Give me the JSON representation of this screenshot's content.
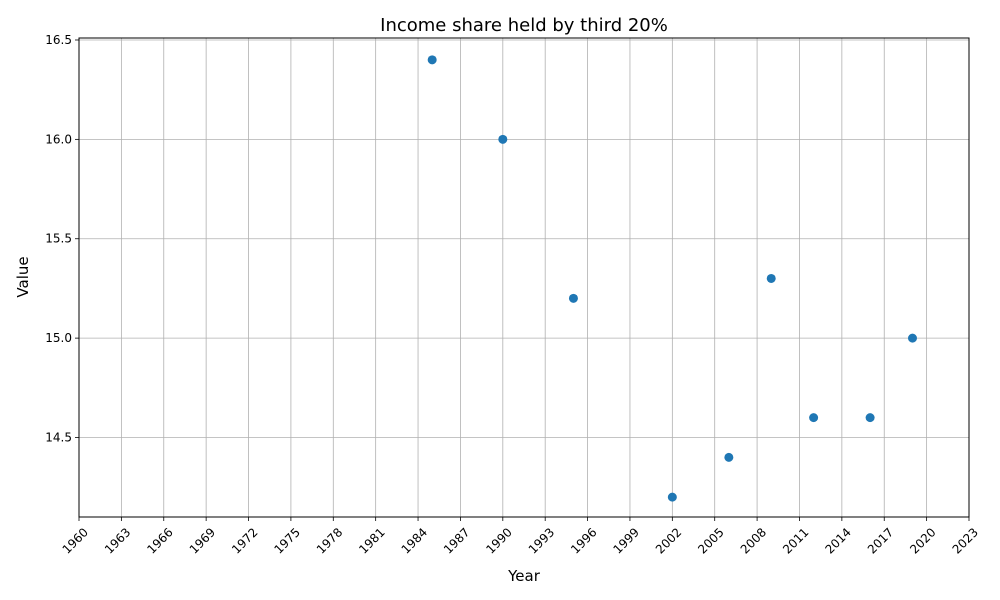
{
  "chart_data": {
    "type": "scatter",
    "title": "Income share held by third 20%",
    "xlabel": "Year",
    "ylabel": "Value",
    "xlim": [
      1960,
      2023
    ],
    "ylim": [
      14.1,
      16.51
    ],
    "x_ticks": [
      1960,
      1963,
      1966,
      1969,
      1972,
      1975,
      1978,
      1981,
      1984,
      1987,
      1990,
      1993,
      1996,
      1999,
      2002,
      2005,
      2008,
      2011,
      2014,
      2017,
      2020,
      2023
    ],
    "y_ticks": [
      14.5,
      15.0,
      15.5,
      16.0,
      16.5
    ],
    "y_tick_labels": [
      "14.5",
      "15.0",
      "15.5",
      "16.0",
      "16.5"
    ],
    "grid": true,
    "marker_color": "#1f77b4",
    "series": [
      {
        "x": [
          1985,
          1990,
          1995,
          2002,
          2006,
          2009,
          2012,
          2016,
          2019
        ],
        "y": [
          16.4,
          16.0,
          15.2,
          14.2,
          14.4,
          15.3,
          14.6,
          14.6,
          15.0
        ]
      }
    ]
  }
}
